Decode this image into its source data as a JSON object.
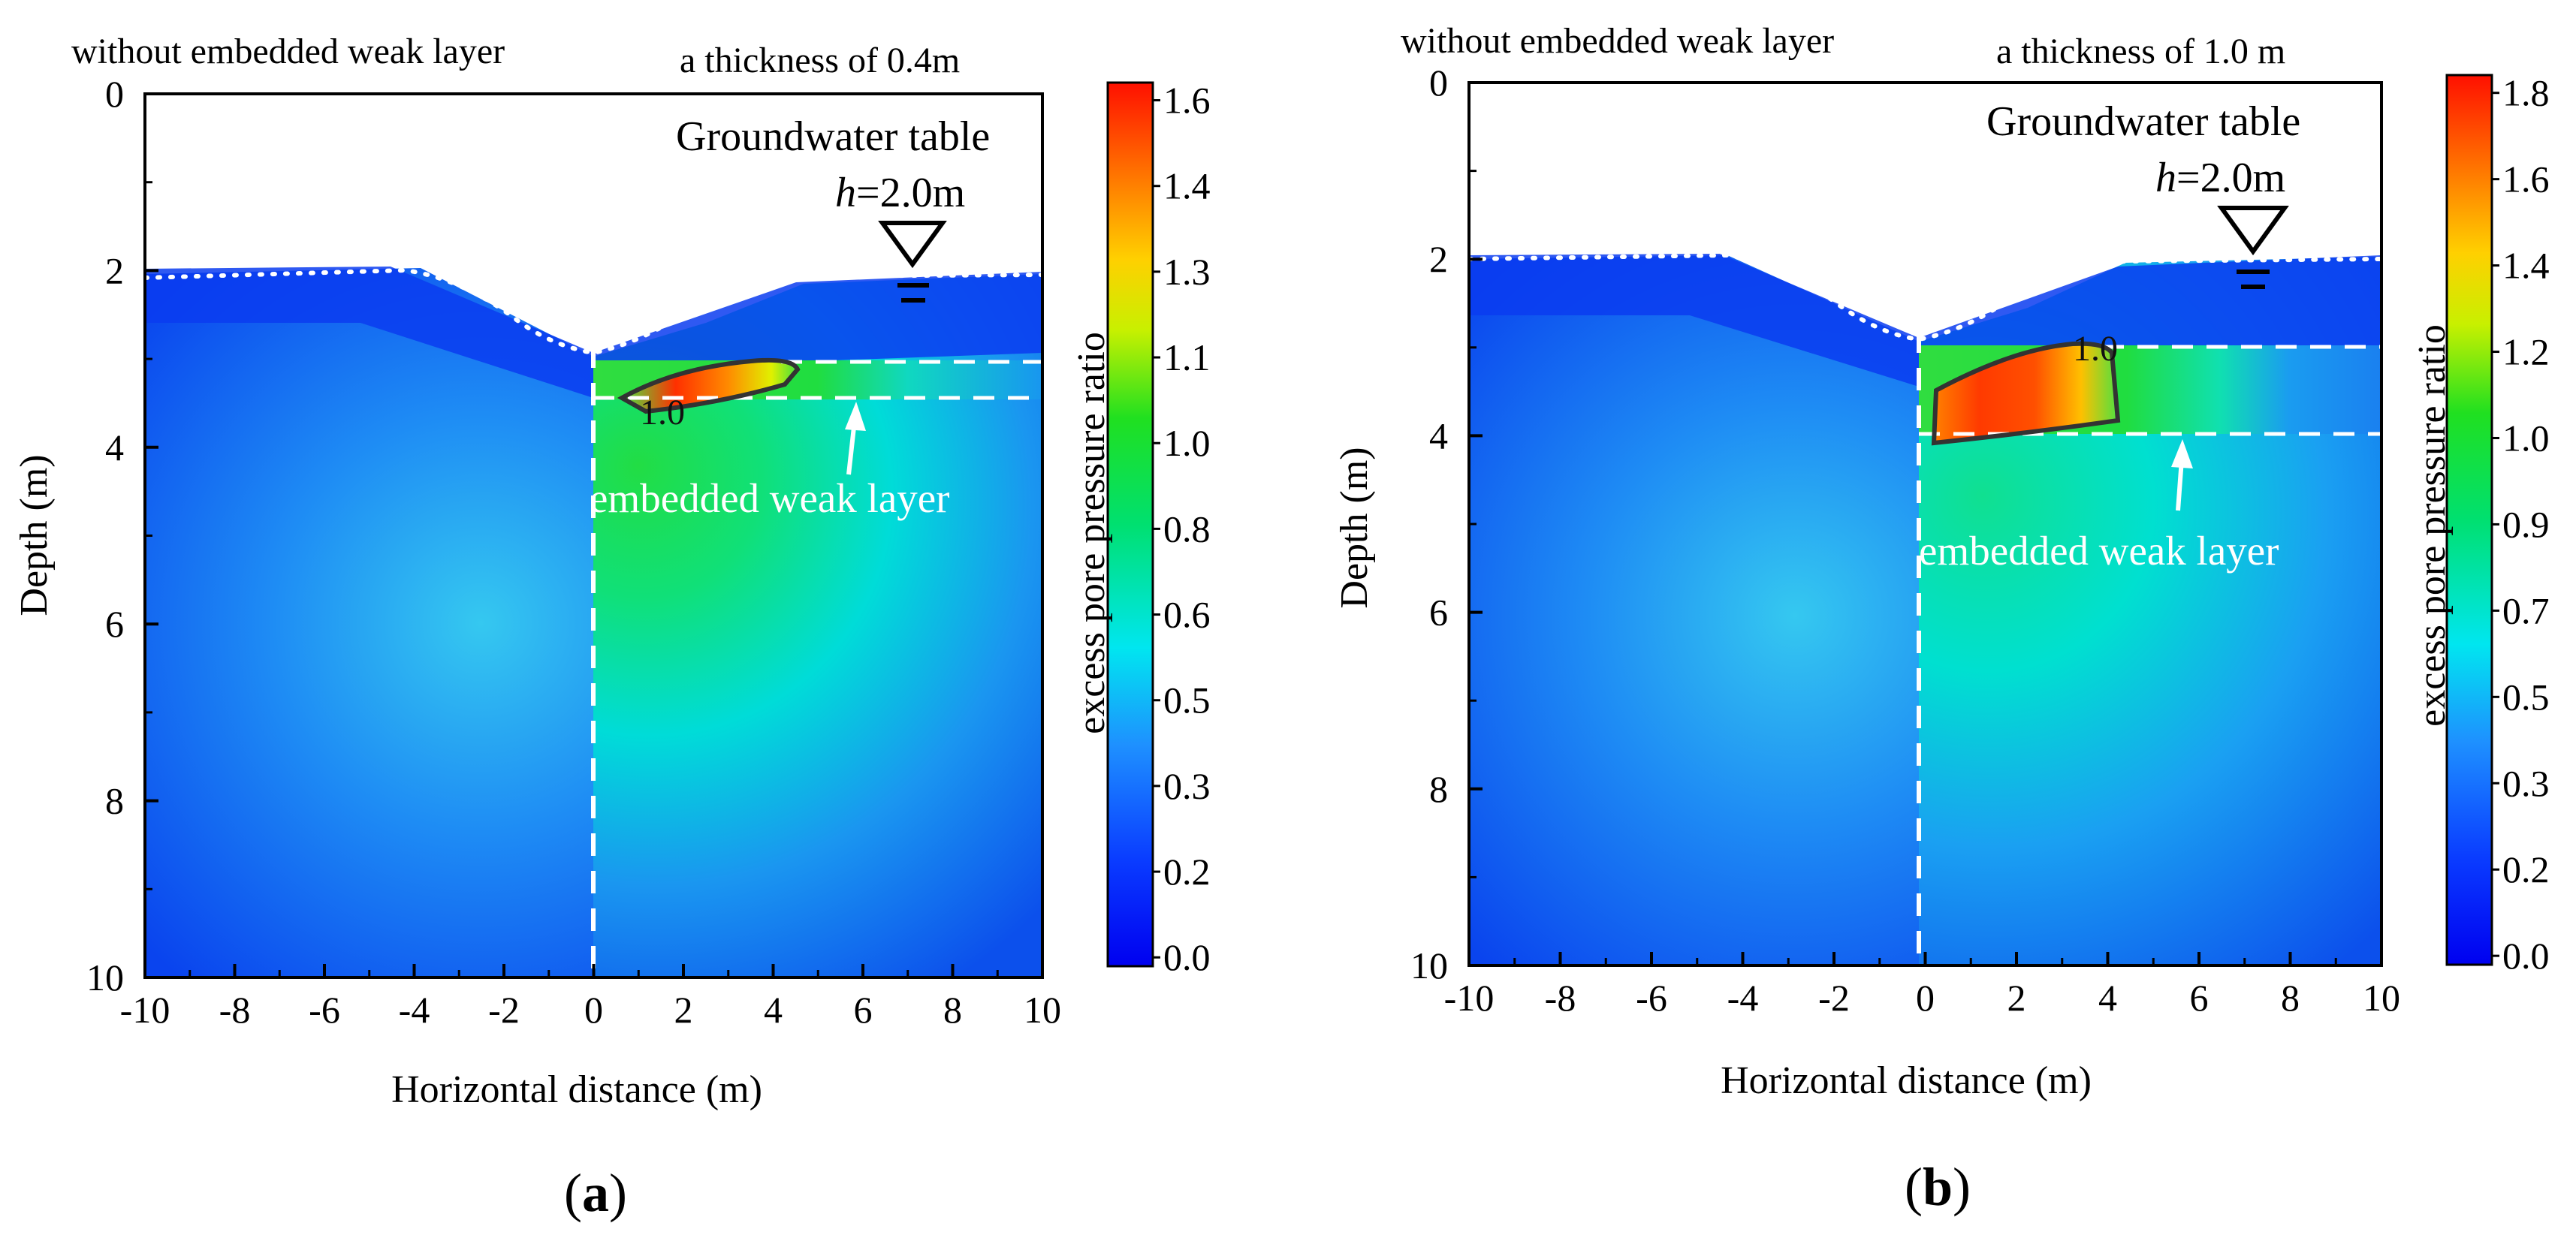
{
  "chart_data": [
    {
      "type": "heatmap",
      "panel_label": "a",
      "annotation_left": "without embedded weak layer",
      "annotation_right": "a thickness of 0.4m",
      "groundwater_label": "Groundwater table",
      "water_level_var": "h",
      "water_level_value": "=2.0m",
      "weak_layer_label": "embedded weak layer",
      "contour_label": "1.0",
      "xlabel": "Horizontal distance  (m)",
      "ylabel": "Depth (m)",
      "xlim": [
        -10,
        10
      ],
      "ylim": [
        0,
        10
      ],
      "x_ticks": [
        "-10",
        "-8",
        "-6",
        "-4",
        "-2",
        "0",
        "2",
        "4",
        "6",
        "8",
        "10"
      ],
      "y_ticks": [
        "0",
        "2",
        "4",
        "6",
        "8",
        "10"
      ],
      "colorbar_label": "excess pore pressure ratio",
      "colorbar_ticks": [
        "0.0",
        "0.2",
        "0.3",
        "0.5",
        "0.6",
        "0.8",
        "1.0",
        "1.1",
        "1.3",
        "1.4",
        "1.6"
      ],
      "colorbar_range": [
        0.0,
        1.62
      ],
      "groundwater_depth": 2.0,
      "weak_layer_top": 3.0,
      "weak_layer_bottom": 3.4,
      "colors": {
        "low": "#0000ff",
        "mid": "#00dd00",
        "high": "#ff0000"
      }
    },
    {
      "type": "heatmap",
      "panel_label": "b",
      "annotation_left": "without embedded weak layer",
      "annotation_right": "a thickness of 1.0 m",
      "groundwater_label": "Groundwater table",
      "water_level_var": "h",
      "water_level_value": "=2.0m",
      "weak_layer_label": "embedded weak layer",
      "contour_label": "1.0",
      "xlabel": "Horizontal distance  (m)",
      "ylabel": "Depth (m)",
      "xlim": [
        -10,
        10
      ],
      "ylim": [
        0,
        10
      ],
      "x_ticks": [
        "-10",
        "-8",
        "-6",
        "-4",
        "-2",
        "0",
        "2",
        "4",
        "6",
        "8",
        "10"
      ],
      "y_ticks": [
        "0",
        "2",
        "4",
        "6",
        "8",
        "10"
      ],
      "colorbar_label": "excess pore pressure ratio",
      "colorbar_ticks": [
        "0.0",
        "0.2",
        "0.3",
        "0.5",
        "0.7",
        "0.9",
        "1.0",
        "1.2",
        "1.4",
        "1.6",
        "1.8"
      ],
      "colorbar_range": [
        0.0,
        1.84
      ],
      "groundwater_depth": 2.0,
      "weak_layer_top": 3.0,
      "weak_layer_bottom": 4.0,
      "colors": {
        "low": "#0000ff",
        "mid": "#00dd00",
        "high": "#ff0000"
      }
    }
  ]
}
